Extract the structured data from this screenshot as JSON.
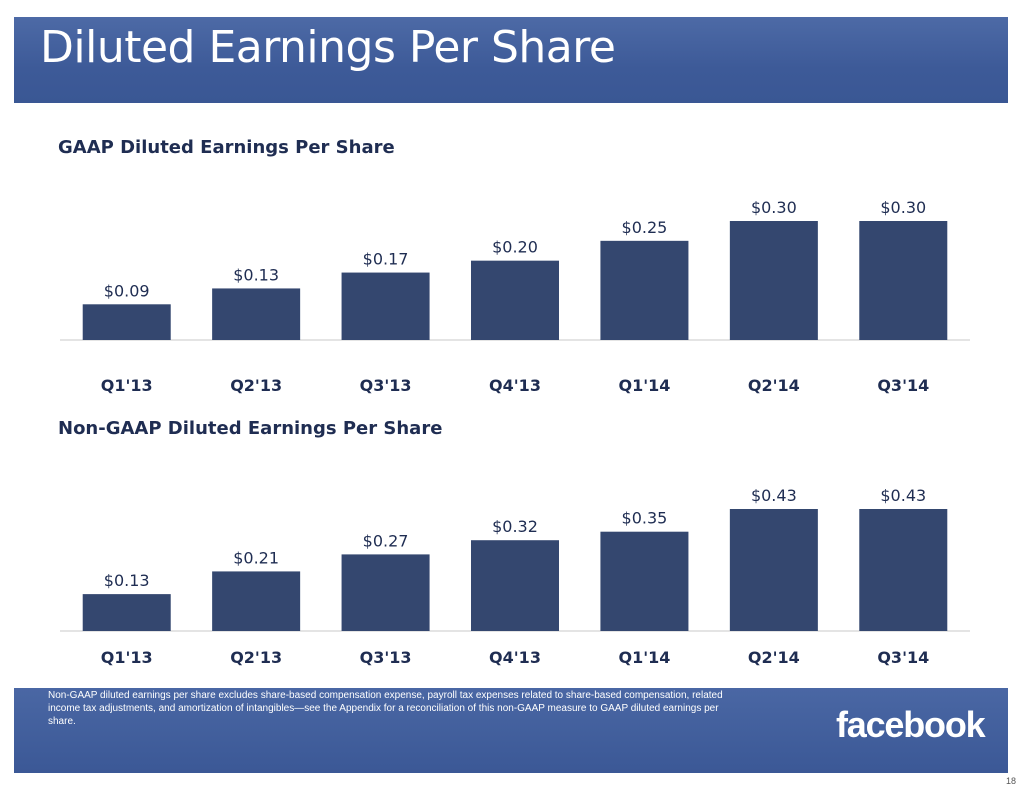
{
  "slide": {
    "title": "Diluted Earnings Per Share",
    "footnote": "Non-GAAP diluted earnings per share excludes share-based compensation expense, payroll tax expenses related to share-based compensation, related income tax adjustments, and amortization of intangibles—see the Appendix for a reconciliation of this non-GAAP measure to GAAP diluted earnings per share.",
    "logo_text": "facebook",
    "page_number": "18"
  },
  "colors": {
    "bar": "#34476f",
    "header": "#3d5a98",
    "title_text": "#1f2d52",
    "axis": "#c8c8c8"
  },
  "chart_data": [
    {
      "type": "bar",
      "title": "GAAP Diluted Earnings Per Share",
      "categories": [
        "Q1'13",
        "Q2'13",
        "Q3'13",
        "Q4'13",
        "Q1'14",
        "Q2'14",
        "Q3'14"
      ],
      "values": [
        0.09,
        0.13,
        0.17,
        0.2,
        0.25,
        0.3,
        0.3
      ],
      "data_labels": [
        "$0.09",
        "$0.13",
        "$0.17",
        "$0.20",
        "$0.25",
        "$0.30",
        "$0.30"
      ],
      "ylim": [
        0,
        0.3
      ],
      "grid": false,
      "legend": "none"
    },
    {
      "type": "bar",
      "title": "Non-GAAP Diluted Earnings Per Share",
      "categories": [
        "Q1'13",
        "Q2'13",
        "Q3'13",
        "Q4'13",
        "Q1'14",
        "Q2'14",
        "Q3'14"
      ],
      "values": [
        0.13,
        0.21,
        0.27,
        0.32,
        0.35,
        0.43,
        0.43
      ],
      "data_labels": [
        "$0.13",
        "$0.21",
        "$0.27",
        "$0.32",
        "$0.35",
        "$0.43",
        "$0.43"
      ],
      "ylim": [
        0,
        0.43
      ],
      "grid": false,
      "legend": "none"
    }
  ]
}
